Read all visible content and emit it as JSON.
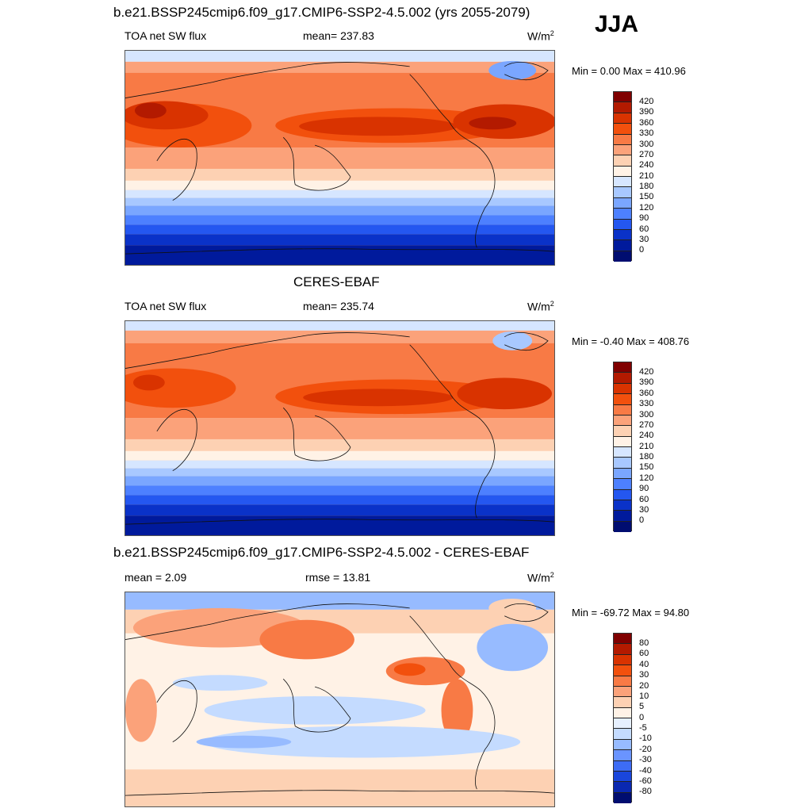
{
  "season": "JJA",
  "panels": [
    {
      "title": "b.e21.BSSP245cmip6.f09_g17.CMIP6-SSP2-4.5.002 (yrs 2055-2079)",
      "left_label": "TOA net SW flux",
      "center_label": "mean= 237.83",
      "units_base": "W/m",
      "units_exp": "2",
      "minmax": "Min =   0.00 Max = 410.96",
      "colorbar_labels": [
        "420",
        "390",
        "360",
        "330",
        "300",
        "270",
        "240",
        "210",
        "180",
        "150",
        "120",
        "90",
        "60",
        "30",
        "0"
      ],
      "colorbar_colors": [
        "#800000",
        "#b31a00",
        "#d93300",
        "#f2500d",
        "#f87a45",
        "#fba27a",
        "#fdd1b3",
        "#fff2e6",
        "#d6e6ff",
        "#a8c8ff",
        "#7aa6ff",
        "#4d80ff",
        "#2457f0",
        "#0a32c8",
        "#001a9c",
        "#000d70"
      ]
    },
    {
      "title": "CERES-EBAF",
      "left_label": "TOA net SW flux",
      "center_label": "mean= 235.74",
      "units_base": "W/m",
      "units_exp": "2",
      "minmax": "Min =  -0.40 Max = 408.76",
      "colorbar_labels": [
        "420",
        "390",
        "360",
        "330",
        "300",
        "270",
        "240",
        "210",
        "180",
        "150",
        "120",
        "90",
        "60",
        "30",
        "0"
      ],
      "colorbar_colors": [
        "#800000",
        "#b31a00",
        "#d93300",
        "#f2500d",
        "#f87a45",
        "#fba27a",
        "#fdd1b3",
        "#fff2e6",
        "#d6e6ff",
        "#a8c8ff",
        "#7aa6ff",
        "#4d80ff",
        "#2457f0",
        "#0a32c8",
        "#001a9c",
        "#000d70"
      ]
    },
    {
      "title": "b.e21.BSSP245cmip6.f09_g17.CMIP6-SSP2-4.5.002 - CERES-EBAF",
      "left_label": "mean =   2.09",
      "center_label": "rmse =  13.81",
      "units_base": "W/m",
      "units_exp": "2",
      "minmax": "Min = -69.72 Max =  94.80",
      "colorbar_labels": [
        "80",
        "60",
        "40",
        "30",
        "20",
        "10",
        "5",
        "0",
        "-5",
        "-10",
        "-20",
        "-30",
        "-40",
        "-60",
        "-80"
      ],
      "colorbar_colors": [
        "#800000",
        "#b31a00",
        "#d93300",
        "#f2500d",
        "#f87a45",
        "#fba27a",
        "#fdd1b3",
        "#fff2e6",
        "#e6f0ff",
        "#c4dbff",
        "#97bbff",
        "#6a94ff",
        "#3d6cf5",
        "#1a46dc",
        "#0a28b0",
        "#000d70"
      ]
    }
  ]
}
